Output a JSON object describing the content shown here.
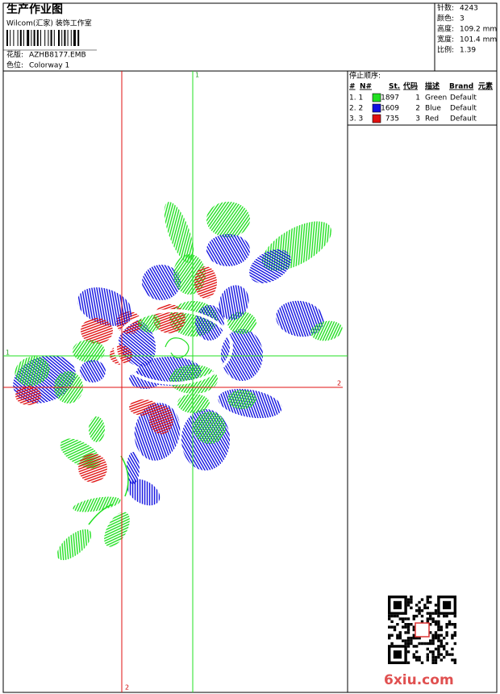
{
  "header": {
    "title": "生产作业图",
    "studio": "Wilcom(汇家) 装饰工作室",
    "design": {
      "label": "花版:",
      "value": "AZHB8177.EMB"
    },
    "colorway": {
      "label": "色位:",
      "value": "Colorway 1"
    }
  },
  "stats": [
    {
      "label": "针数:",
      "value": "4243"
    },
    {
      "label": "颜色:",
      "value": "3"
    },
    {
      "label": "高度:",
      "value": "109.2 mm"
    },
    {
      "label": "宽度:",
      "value": "101.4 mm"
    },
    {
      "label": "比例:",
      "value": "1.39"
    }
  ],
  "stop_sequence": {
    "title": "停止顺序:",
    "columns": [
      "#",
      "N#",
      "St.",
      "代码",
      "描述",
      "Brand",
      "元素"
    ],
    "rows": [
      {
        "index": "1. 1",
        "color": "#22e022",
        "stitches": 1897,
        "code": 1,
        "description": "Green",
        "brand": "Default"
      },
      {
        "index": "2. 2",
        "color": "#1010e0",
        "stitches": 1609,
        "code": 2,
        "description": "Blue",
        "brand": "Default"
      },
      {
        "index": "3. 3",
        "color": "#e01010",
        "stitches": 735,
        "code": 3,
        "description": "Red",
        "brand": "Default"
      }
    ]
  },
  "markers": {
    "green_top": "1",
    "green_left": "1",
    "red_right": "2",
    "red_bottom": "2"
  },
  "watermark": "6xiu.com"
}
